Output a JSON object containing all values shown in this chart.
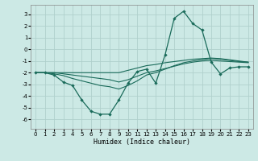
{
  "xlabel": "Humidex (Indice chaleur)",
  "xlim": [
    -0.5,
    23.5
  ],
  "ylim": [
    -6.8,
    3.8
  ],
  "yticks": [
    -6,
    -5,
    -4,
    -3,
    -2,
    -1,
    0,
    1,
    2,
    3
  ],
  "xticks": [
    0,
    1,
    2,
    3,
    4,
    5,
    6,
    7,
    8,
    9,
    10,
    11,
    12,
    13,
    14,
    15,
    16,
    17,
    18,
    19,
    20,
    21,
    22,
    23
  ],
  "bg_color": "#cce9e5",
  "grid_color": "#b0d0cc",
  "line_color": "#1a6b5a",
  "x": [
    0,
    1,
    2,
    3,
    4,
    5,
    6,
    7,
    8,
    9,
    10,
    11,
    12,
    13,
    14,
    15,
    16,
    17,
    18,
    19,
    20,
    21,
    22,
    23
  ],
  "y_main": [
    -2.0,
    -2.0,
    -2.2,
    -2.8,
    -3.1,
    -4.35,
    -5.3,
    -5.55,
    -5.55,
    -4.35,
    -2.9,
    -1.9,
    -1.7,
    -2.9,
    -0.5,
    2.65,
    3.25,
    2.2,
    1.65,
    -1.1,
    -2.1,
    -1.6,
    -1.5,
    -1.5
  ],
  "y_line1": [
    -2.0,
    -2.0,
    -2.0,
    -2.0,
    -2.0,
    -2.0,
    -2.0,
    -2.0,
    -2.0,
    -2.0,
    -1.8,
    -1.6,
    -1.4,
    -1.3,
    -1.15,
    -1.05,
    -0.95,
    -0.85,
    -0.8,
    -0.75,
    -0.8,
    -0.9,
    -1.0,
    -1.1
  ],
  "y_line2": [
    -2.0,
    -2.0,
    -2.0,
    -2.1,
    -2.2,
    -2.3,
    -2.4,
    -2.5,
    -2.6,
    -2.8,
    -2.6,
    -2.3,
    -2.0,
    -1.85,
    -1.65,
    -1.45,
    -1.25,
    -1.1,
    -1.0,
    -0.95,
    -1.0,
    -1.05,
    -1.1,
    -1.15
  ],
  "y_line3": [
    -2.0,
    -2.0,
    -2.1,
    -2.25,
    -2.5,
    -2.7,
    -2.9,
    -3.1,
    -3.2,
    -3.4,
    -3.1,
    -2.7,
    -2.2,
    -2.0,
    -1.7,
    -1.4,
    -1.15,
    -1.0,
    -0.88,
    -0.8,
    -0.85,
    -0.95,
    -1.05,
    -1.1
  ]
}
